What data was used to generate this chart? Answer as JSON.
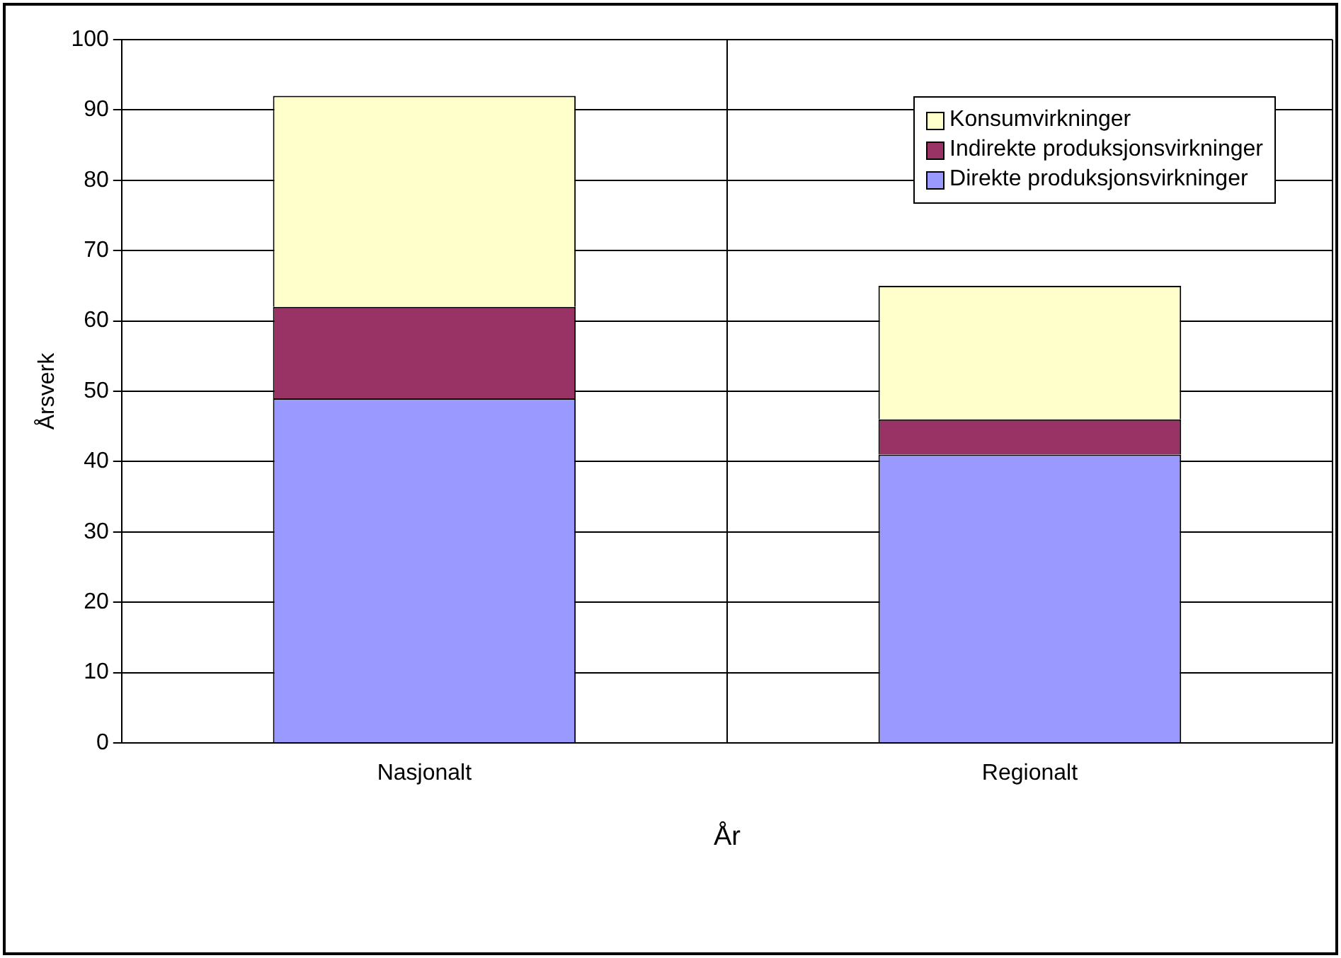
{
  "chart_data": {
    "type": "bar",
    "stacked": true,
    "xlabel": "År",
    "ylabel": "Årsverk",
    "categories": [
      "Nasjonalt",
      "Regionalt"
    ],
    "series": [
      {
        "name": "Direkte produksjonsvirkninger",
        "color": "#9999ff",
        "values": [
          49,
          41
        ]
      },
      {
        "name": "Indirekte produksjonsvirkninger",
        "color": "#993366",
        "values": [
          13,
          5
        ]
      },
      {
        "name": "Konsumvirkninger",
        "color": "#ffffcc",
        "values": [
          30,
          19
        ]
      }
    ],
    "ylim": [
      0,
      100
    ],
    "yticks": [
      0,
      10,
      20,
      30,
      40,
      50,
      60,
      70,
      80,
      90,
      100
    ],
    "grid": true,
    "legend": "top right"
  }
}
